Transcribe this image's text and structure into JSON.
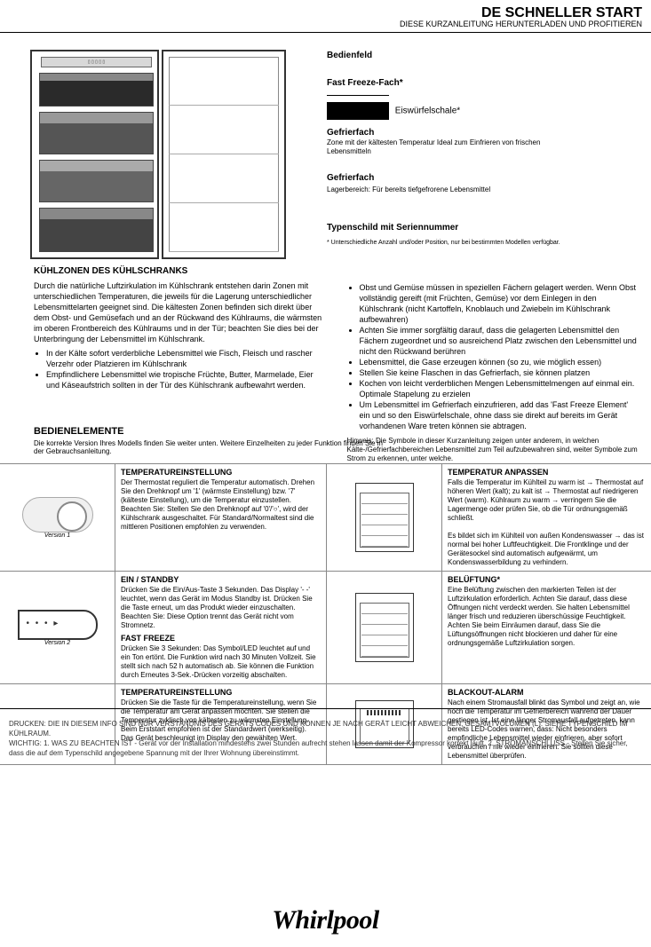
{
  "header": {
    "title": "DE SCHNELLER START",
    "subtitle": "DIESE KURZANLEITUNG HERUNTERLADEN UND PROFITIEREN"
  },
  "labels": {
    "l1": "Bedienfeld",
    "l2": "Fast Freeze-Fach*",
    "ff_box": "FAST FREEZE",
    "l3": "Eiswürfelschale*",
    "l4": "Gefrierfach",
    "l5": "Zone mit der kältesten Temperatur Ideal zum Einfrieren von frischen Lebensmitteln",
    "l6": "Gefrierfach",
    "l7": "Lagerbereich: Für bereits tiefgefrorene Lebensmittel",
    "l8": "Typenschild mit Seriennummer",
    "note": "* Unterschiedliche Anzahl und/oder Position, nur bei bestimmten Modellen verfügbar."
  },
  "desc": {
    "title": "KÜHLZONEN DES KÜHLSCHRANKS",
    "left_intro": "Durch die natürliche Luftzirkulation im Kühlschrank entstehen darin Zonen mit unterschiedlichen Temperaturen, die jeweils für die Lagerung unterschiedlicher Lebensmittelarten geeignet sind. Die kältesten Zonen befinden sich direkt über dem Obst- und Gemüsefach und an der Rückwand des Kühlraums, die wärmsten im oberen Frontbereich des Kühlraums und in der Tür; beachten Sie dies bei der Unterbringung der Lebensmittel im Kühlschrank.",
    "left_bullets": [
      "In der Kälte sofort verderbliche Lebensmittel wie Fisch, Fleisch und rascher Verzehr oder Platzieren im Kühlschrank",
      "Empfindlichere Lebensmittel wie tropische Früchte, Butter, Marmelade, Eier und Käseaufstrich sollten in der Tür des Kühlschrank aufbewahrt werden."
    ],
    "right_bullets": [
      "Obst und Gemüse müssen in speziellen Fächern gelagert werden. Wenn Obst vollständig gereift (mit Früchten, Gemüse) vor dem Einlegen in den Kühlschrank (nicht Kartoffeln, Knoblauch und Zwiebeln im Kühlschrank aufbewahren)",
      "Achten Sie immer sorgfältig darauf, dass die gelagerten Lebensmittel den Fächern zugeordnet und so ausreichend Platz zwischen den Lebensmittel und nicht den Rückwand berühren",
      "Lebensmittel, die Gase erzeugen können (so zu, wie möglich essen)",
      "Stellen Sie keine Flaschen in das Gefrierfach, sie können platzen",
      "Kochen von leicht verderblichen Mengen Lebensmittelmengen auf einmal ein. Optimale Stapelung zu erzielen",
      "Um Lebensmittel im Gefrierfach einzufrieren, add das 'Fast Freeze Element' ein und so den Eiswürfelschale, ohne dass sie direkt auf bereits im Gerät vorhandenen Ware treten können sie abtragen."
    ],
    "right_note": "Hinweis: Die Symbole in dieser Kurzanleitung zeigen unter anderem, in welchen Kälte-/Gefrierfachbereichen Lebensmittel zum Teil aufzubewahren sind, weiter Symbole zum Strom zu erkennen, unter welche."
  },
  "controls": {
    "head": "BEDIENELEMENTE",
    "note": "Die korrekte Version Ihres Modells finden Sie weiter unten. Weitere Einzelheiten zu jeder Funktion finden Sie in der Gebrauchsanleitung.",
    "rows": [
      {
        "left_img": "dial",
        "left_ver": "Version 1",
        "left_title": "TEMPERATUREINSTELLUNG",
        "left_text": "Der Thermostat reguliert die Temperatur automatisch. Drehen Sie den Drehknopf um '1' (wärmste Einstellung) bzw. '7' (kälteste Einstellung), um die Temperatur einzustellen. Beachten Sie: Stellen Sie den Drehknopf auf '0'/'○', wird der Kühlschrank ausgeschaltet. Für Standard/Normaltest sind die mittleren Positionen empfohlen zu verwenden.",
        "right_title": "TEMPERATUR ANPASSEN",
        "right_text": "Falls die Temperatur im Kühlteil zu warm ist → Thermostat auf höheren Wert (kalt); zu kalt ist → Thermostat auf niedrigeren Wert (warm). Kühlraum zu warm → verringern Sie die Lagermenge oder prüfen Sie, ob die Tür ordnungsgemäß schließt.",
        "right_text2": "Es bildet sich im Kühlteil von außen Kondenswasser → das ist normal bei hoher Luftfeuchtigkeit. Die Frontklinge und der Gerätesockel sind automatisch aufgewärmt, um Kondenswasserbildung zu verhindern."
      },
      {
        "left_img": "elec",
        "left_ver": "Version 2",
        "left_title": "EIN / STANDBY",
        "left_text": "Drücken Sie die Ein/Aus-Taste 3 Sekunden. Das Display '- -' leuchtet, wenn das Gerät im Modus Standby ist. Drücken Sie die Taste erneut, um das Produkt wieder einzuschalten. Beachten Sie: Diese Option trennt das Gerät nicht vom Stromnetz.",
        "left_title2": "FAST FREEZE",
        "left_text2": "Drücken Sie 3 Sekunden: Das Symbol/LED leuchtet auf und ein Ton ertönt. Die Funktion wird nach 30 Minuten Vollzeit. Sie stellt sich nach 52 h automatisch ab. Sie können die Funktion durch Erneutes 3-Sek.-Drücken vorzeitig abschalten.",
        "right_title": "BELÜFTUNG*",
        "right_text": "Eine Belüftung zwischen den markierten Teilen ist der Luftzirkulation erforderlich. Achten Sie darauf, dass diese Öffnungen nicht verdeckt werden. Sie halten Lebensmittel länger frisch und reduzieren überschüssige Feuchtigkeit. Achten Sie beim Einräumen darauf, dass Sie die Lüftungsöffnungen nicht blockieren und daher für eine ordnungsgemäße Luftzirkulation sorgen."
      },
      {
        "left_img": "none",
        "left_title": "TEMPERATUREINSTELLUNG",
        "left_text": "Drücken Sie die Taste für die Temperatureinstellung, wenn Sie die Temperatur am Gerät anpassen möchten. Sie stellen die Temperatur zyklisch von kältesten zu wärmsten Einstellung. Beim Erststart empfohlen ist der Standardwert (werkseitig). Das Gerät beschleunigt im Display den gewählten Wert.",
        "right_title": "BLACKOUT-ALARM",
        "right_text": "Nach einem Stromausfall blinkt das Symbol und zeigt an, wie hoch die Temperatur im Gefrierbereich während der Dauer gestiegen ist. Ist eine länger Stromausfall aufgetreten, kann bereits LED-Codes warnen, dass: Nicht besonders empfindliche Lebensmittel wieder einfrieren, aber sofort verbrauchen / nie wieder einfrieren. Sie sollten diese Lebensmittel überprüfen."
      }
    ]
  },
  "footer": {
    "text": "DRUCKEN: DIE IN DIESEM INFO SIND NUR VERSTÄNDNIS DES GERÄTS CODES UND KÖNNEN JE NACH GERÄT LEICHT ABWEICHEN. GESAMTVOLUMEN (L): SIEHE TYPENSCHILD IM KÜHLRAUM. <br> WICHTIG: 1. WAS ZU BEACHTEN IST - Gerät vor der Installation mindestens zwei Stunden aufrecht stehen lassen damit der Kompressor korrekt läuft. 2. STROMANSCHLUSS - Stellen Sie sicher, dass die auf dem Typenschild angegebene Spannung mit der Ihrer Wohnung übereinstimmt.",
    "logo": "Whirlpool"
  }
}
